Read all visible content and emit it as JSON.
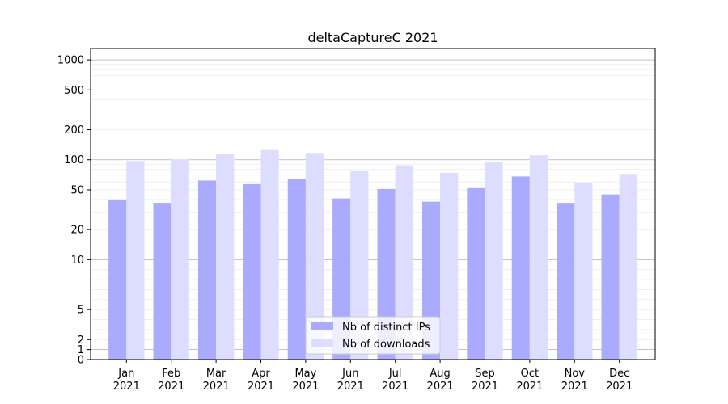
{
  "chart_data": {
    "type": "bar",
    "title": "deltaCaptureC 2021",
    "xlabel": "",
    "ylabel": "",
    "y_scale": "symlog",
    "ylim": [
      0,
      1300
    ],
    "y_ticks": [
      0,
      1,
      2,
      5,
      10,
      20,
      50,
      100,
      200,
      500,
      1000
    ],
    "categories": [
      "Jan\n2021",
      "Feb\n2021",
      "Mar\n2021",
      "Apr\n2021",
      "May\n2021",
      "Jun\n2021",
      "Jul\n2021",
      "Aug\n2021",
      "Sep\n2021",
      "Oct\n2021",
      "Nov\n2021",
      "Dec\n2021"
    ],
    "series": [
      {
        "name": "Nb of distinct IPs",
        "color": "#aaaaff",
        "values": [
          40,
          37,
          62,
          57,
          64,
          41,
          51,
          38,
          52,
          68,
          37,
          45
        ]
      },
      {
        "name": "Nb of downloads",
        "color": "#ddddff",
        "values": [
          97,
          101,
          115,
          125,
          117,
          77,
          88,
          74,
          95,
          111,
          59,
          72
        ]
      }
    ],
    "grid": true,
    "legend_position": "bottom-center"
  }
}
